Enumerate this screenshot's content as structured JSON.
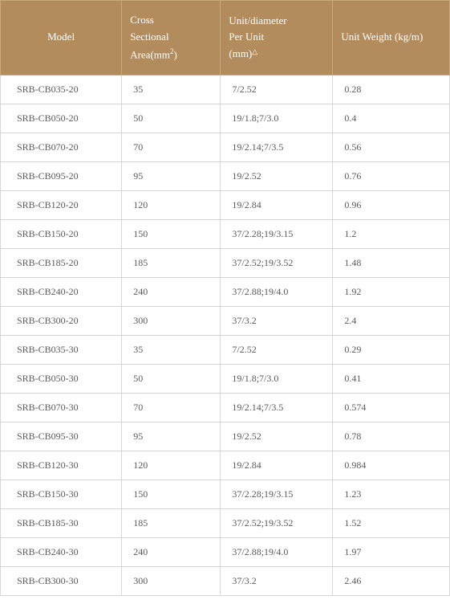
{
  "table": {
    "header_bg": "#b38c5d",
    "header_border": "#c9a97a",
    "header_text_color": "#ffffff",
    "body_border": "#d8d8d8",
    "body_text_color": "#5a5a5a",
    "columns": [
      {
        "label": "Model"
      },
      {
        "label_line1": "Cross",
        "label_line2": "Sectional",
        "label_line3_pre": "Area(mm",
        "label_line3_sup": "2",
        "label_line3_post": ")"
      },
      {
        "label_line1": "Unit/diameter",
        "label_line2": "Per Unit",
        "label_line3_pre": "(mm)",
        "label_line3_tri": "△"
      },
      {
        "label": "Unit Weight  (kg/m)"
      }
    ],
    "rows": [
      {
        "model": "SRB-CB035-20",
        "area": "35",
        "unit": "7/2.52",
        "weight": "0.28"
      },
      {
        "model": "SRB-CB050-20",
        "area": "50",
        "unit": "19/1.8;7/3.0",
        "weight": "0.4"
      },
      {
        "model": "SRB-CB070-20",
        "area": "70",
        "unit": "19/2.14;7/3.5",
        "weight": "0.56"
      },
      {
        "model": "SRB-CB095-20",
        "area": "95",
        "unit": "19/2.52",
        "weight": "0.76"
      },
      {
        "model": "SRB-CB120-20",
        "area": "120",
        "unit": "19/2.84",
        "weight": "0.96"
      },
      {
        "model": "SRB-CB150-20",
        "area": "150",
        "unit": "37/2.28;19/3.15",
        "weight": "1.2"
      },
      {
        "model": "SRB-CB185-20",
        "area": "185",
        "unit": "37/2.52;19/3.52",
        "weight": "1.48"
      },
      {
        "model": "SRB-CB240-20",
        "area": "240",
        "unit": "37/2.88;19/4.0",
        "weight": "1.92"
      },
      {
        "model": "SRB-CB300-20",
        "area": "300",
        "unit": "37/3.2",
        "weight": "2.4"
      },
      {
        "model": "SRB-CB035-30",
        "area": "35",
        "unit": "7/2.52",
        "weight": "0.29"
      },
      {
        "model": "SRB-CB050-30",
        "area": "50",
        "unit": "19/1.8;7/3.0",
        "weight": "0.41"
      },
      {
        "model": "SRB-CB070-30",
        "area": "70",
        "unit": "19/2.14;7/3.5",
        "weight": "0.574"
      },
      {
        "model": "SRB-CB095-30",
        "area": "95",
        "unit": "19/2.52",
        "weight": "0.78"
      },
      {
        "model": "SRB-CB120-30",
        "area": "120",
        "unit": "19/2.84",
        "weight": "0.984"
      },
      {
        "model": "SRB-CB150-30",
        "area": "150",
        "unit": "37/2.28;19/3.15",
        "weight": "1.23"
      },
      {
        "model": "SRB-CB185-30",
        "area": "185",
        "unit": "37/2.52;19/3.52",
        "weight": "1.52"
      },
      {
        "model": "SRB-CB240-30",
        "area": "240",
        "unit": "37/2.88;19/4.0",
        "weight": "1.97"
      },
      {
        "model": "SRB-CB300-30",
        "area": "300",
        "unit": "37/3.2",
        "weight": "2.46"
      }
    ]
  }
}
